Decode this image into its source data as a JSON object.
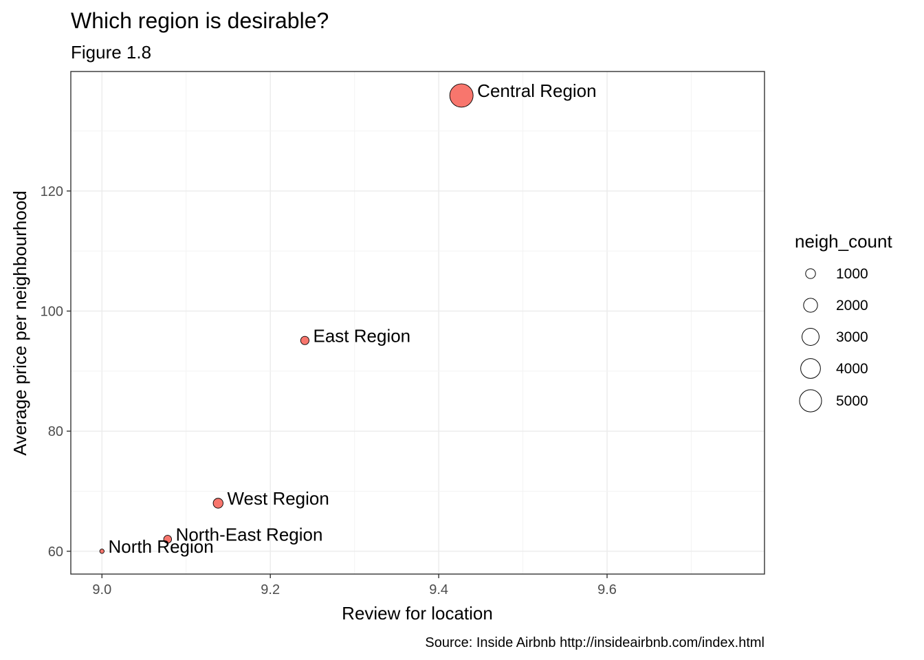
{
  "chart_data": {
    "type": "scatter",
    "title": "Which region is desirable?",
    "subtitle": "Figure 1.8",
    "xlabel": "Review for location",
    "ylabel": "Average price per neighbourhood",
    "caption": "Source: Inside Airbnb http://insideairbnb.com/index.html",
    "xlim": [
      8.963,
      9.787
    ],
    "ylim": [
      56.2,
      139.9
    ],
    "x_ticks": [
      9.0,
      9.2,
      9.4,
      9.6
    ],
    "x_tick_labels": [
      "9.0",
      "9.2",
      "9.4",
      "9.6"
    ],
    "y_ticks": [
      60,
      80,
      100,
      120
    ],
    "y_tick_labels": [
      "60",
      "80",
      "100",
      "120"
    ],
    "grid": true,
    "point_color": "#F8766D",
    "size_variable": "neigh_count",
    "points": [
      {
        "label": "Central Region",
        "x": 9.427,
        "y": 135.9,
        "neigh_count": 5600
      },
      {
        "label": "East Region",
        "x": 9.241,
        "y": 95.1,
        "neigh_count": 720
      },
      {
        "label": "West Region",
        "x": 9.138,
        "y": 68.0,
        "neigh_count": 1000
      },
      {
        "label": "North-East Region",
        "x": 9.078,
        "y": 62.0,
        "neigh_count": 640
      },
      {
        "label": "North Region",
        "x": 9.0,
        "y": 60.0,
        "neigh_count": 150
      }
    ],
    "legend": {
      "title": "neigh_count",
      "position": "right",
      "entries": [
        {
          "label": "1000",
          "value": 1000
        },
        {
          "label": "2000",
          "value": 2000
        },
        {
          "label": "3000",
          "value": 3000
        },
        {
          "label": "4000",
          "value": 4000
        },
        {
          "label": "5000",
          "value": 5000
        }
      ]
    }
  }
}
